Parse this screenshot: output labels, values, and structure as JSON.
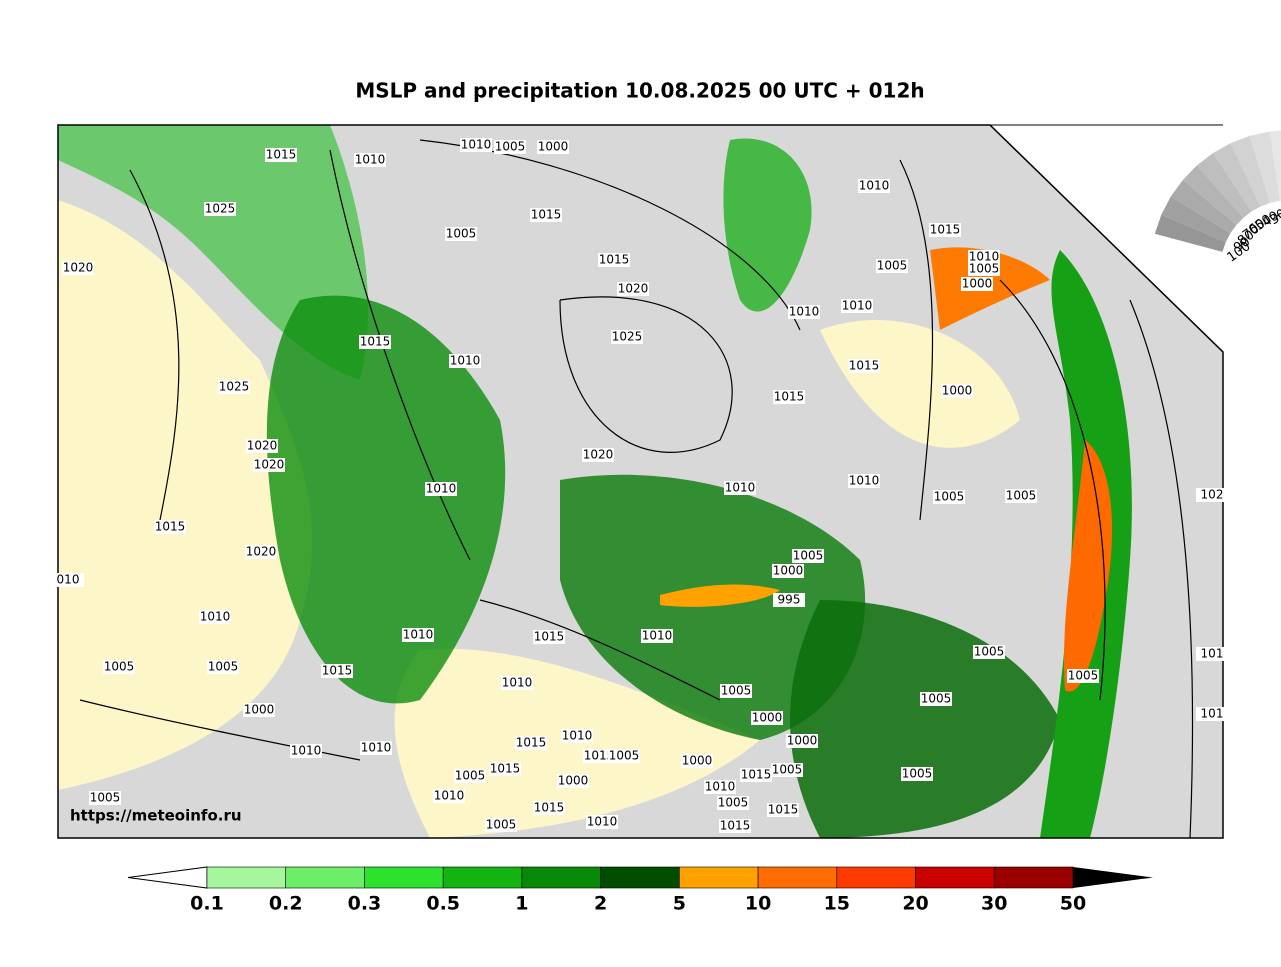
{
  "header": {
    "title": "MSLP and precipitation 10.08.2025 00 UTC + 012h"
  },
  "map": {
    "watermark": "https://meteoinfo.ru",
    "isobar_labels": [
      "1015",
      "1010",
      "1010",
      "1005",
      "1000",
      "1025",
      "1015",
      "1005",
      "1020",
      "1015",
      "1020",
      "1015",
      "1010",
      "1025",
      "1025",
      "1020",
      "1020",
      "1020",
      "1010",
      "1010",
      "1010",
      "1015",
      "1010",
      "1005",
      "1000",
      "1005",
      "1010",
      "1010",
      "1015",
      "1015",
      "1000",
      "1010",
      "1005",
      "1005",
      "1015",
      "1020",
      "1005",
      "1000",
      "995",
      "1010",
      "1010",
      "1015",
      "1010",
      "1005",
      "1005",
      "1015",
      "1010",
      "1005",
      "1005",
      "1005",
      "1000",
      "1000",
      "1005",
      "1010",
      "1010",
      "1015",
      "1010",
      "1015",
      "1005",
      "1000",
      "1000",
      "1015",
      "1005",
      "1005",
      "1005",
      "1015",
      "1000",
      "1010",
      "1010",
      "1005",
      "1015",
      "1015",
      "1005",
      "1005",
      "1010",
      "1015",
      "010",
      "102",
      "101",
      "101"
    ],
    "cloud_scale_labels": [
      "100",
      "90",
      "80",
      "70",
      "60",
      "50",
      "40",
      "30",
      "20"
    ]
  },
  "colorbar": {
    "labels": [
      "0.1",
      "0.2",
      "0.3",
      "0.5",
      "1",
      "2",
      "5",
      "10",
      "15",
      "20",
      "30",
      "50"
    ],
    "colors": [
      "#a6f79c",
      "#6cee68",
      "#2de22d",
      "#12b412",
      "#088a08",
      "#004d00",
      "#ffa200",
      "#ff6c00",
      "#ff3a00",
      "#c80000",
      "#9a0000"
    ]
  }
}
